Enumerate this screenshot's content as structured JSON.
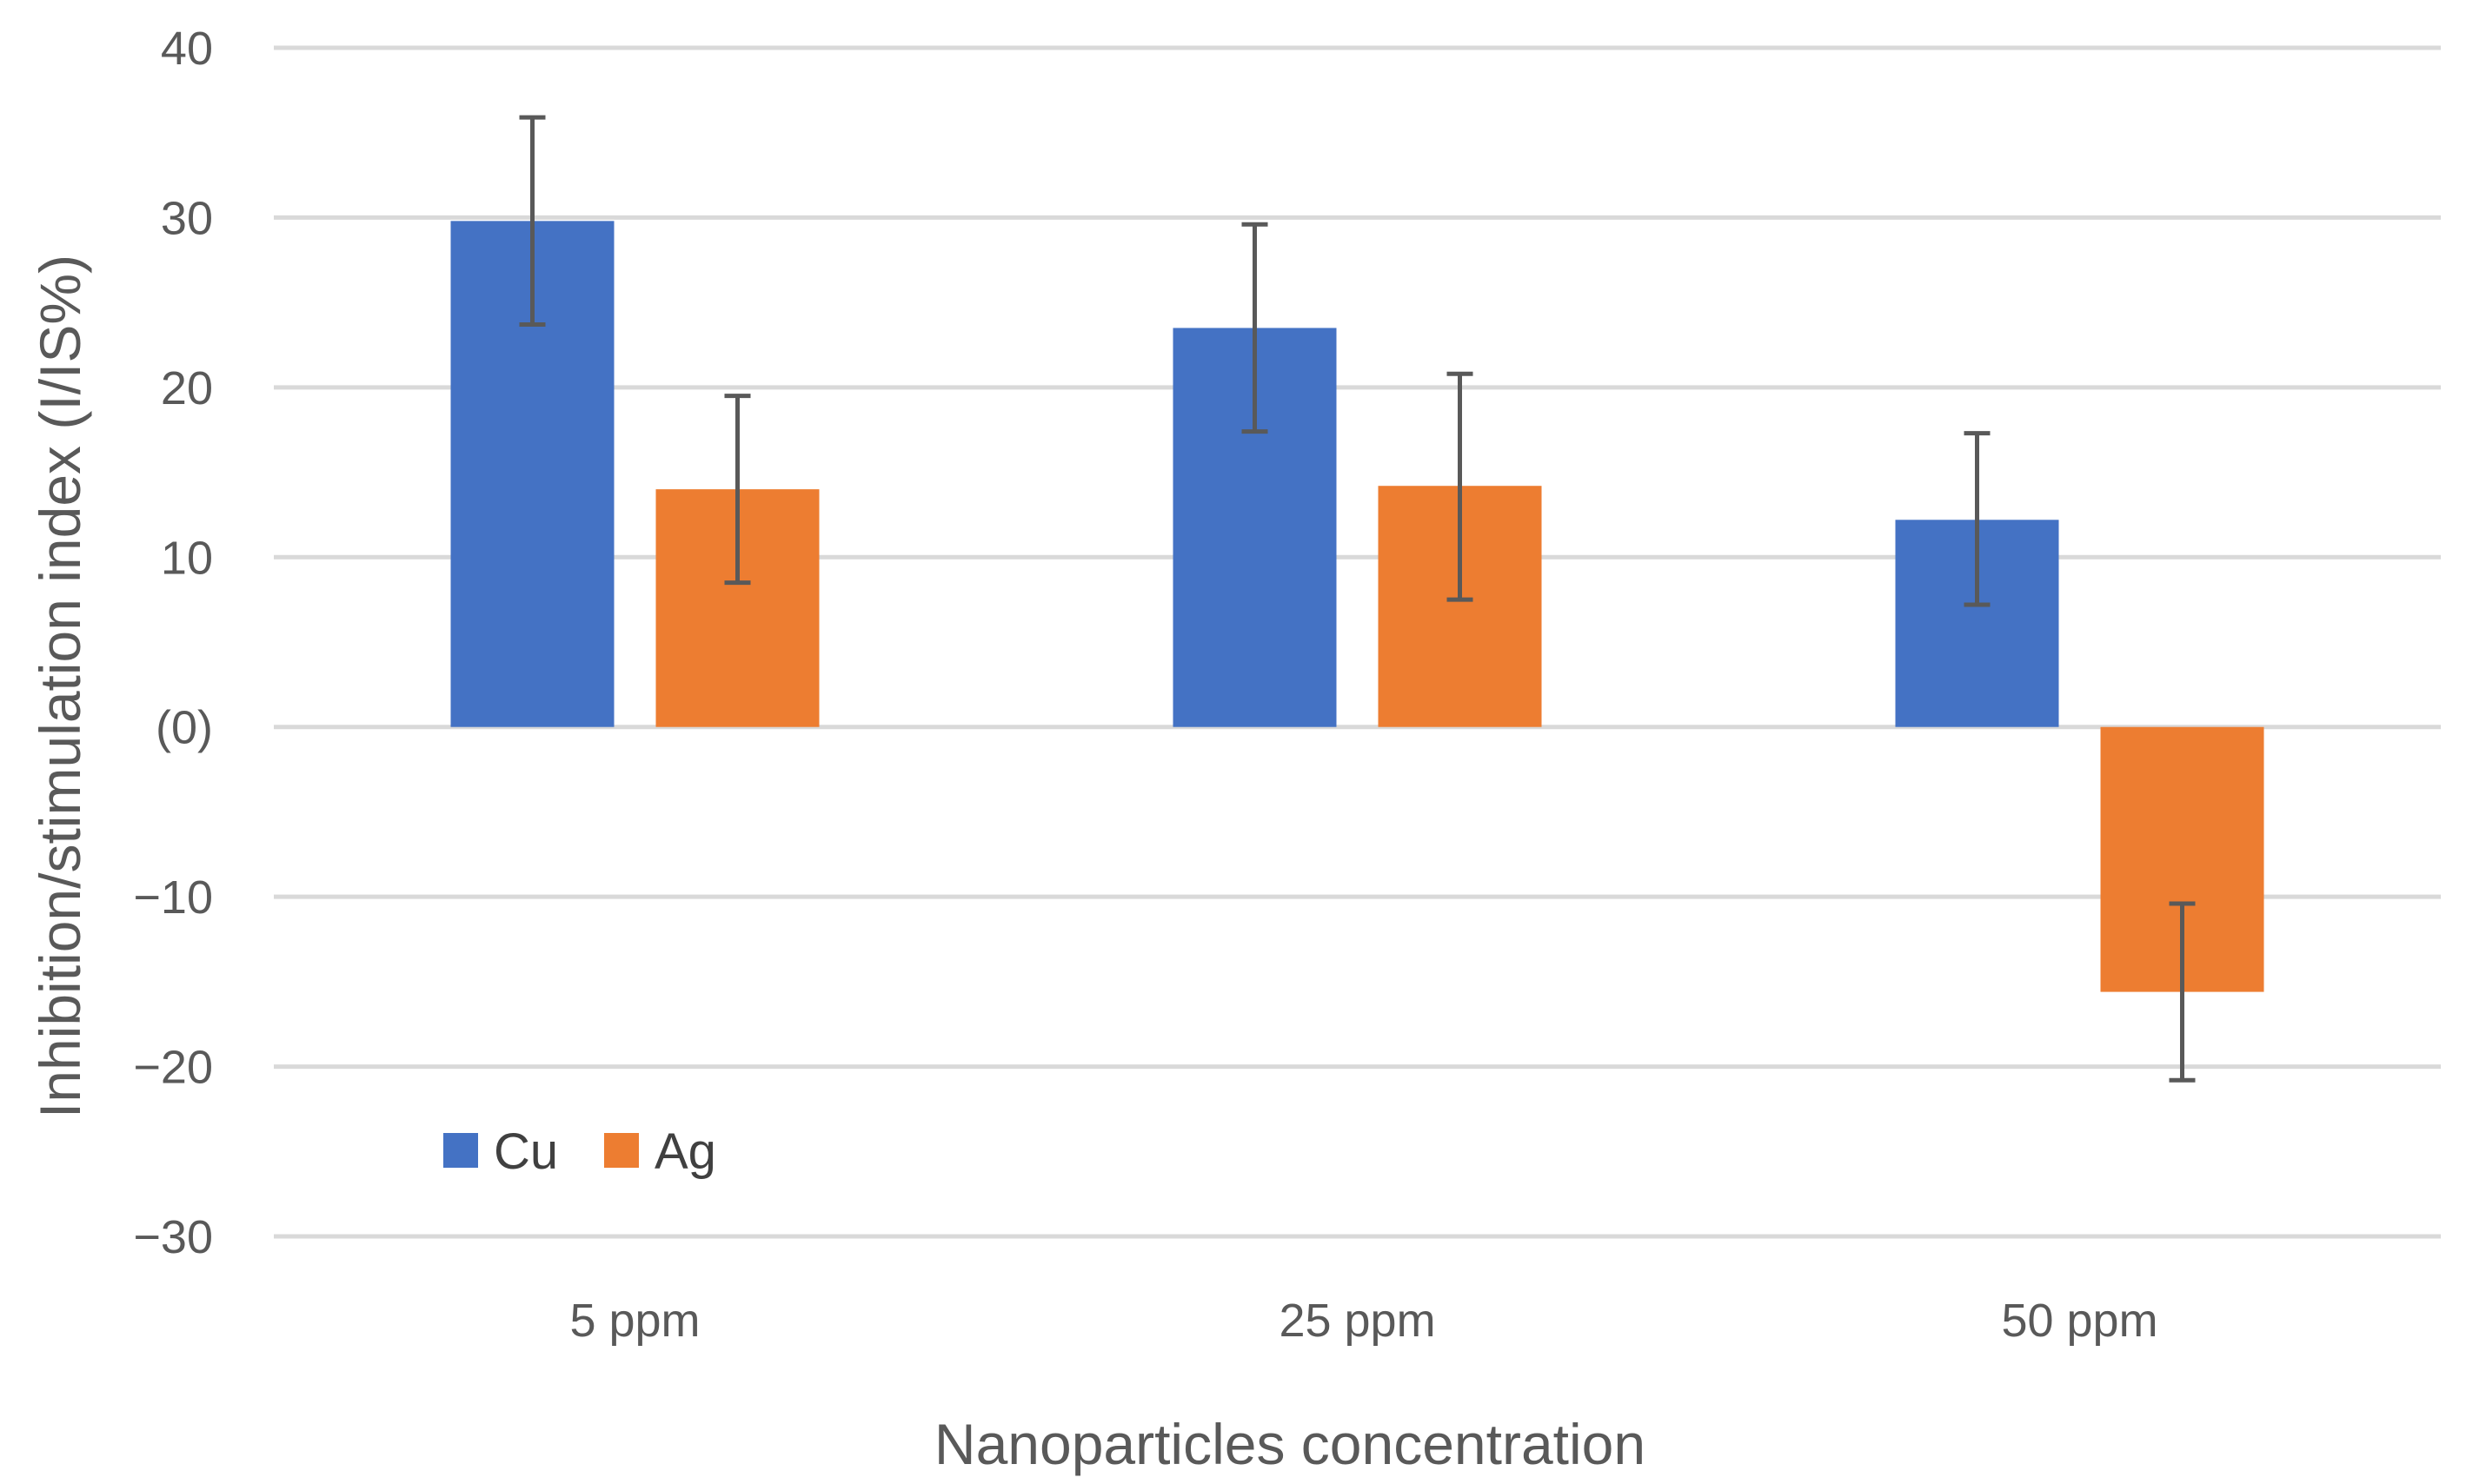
{
  "chart_data": {
    "type": "bar",
    "title": "",
    "xlabel": "Nanoparticles concentration",
    "ylabel": "Inhibition/stimulation index (I/IS%)",
    "categories": [
      "5 ppm",
      "25 ppm",
      "50 ppm"
    ],
    "ylim": [
      -30,
      40
    ],
    "yticks": [
      40,
      30,
      20,
      10,
      0,
      -10,
      -20,
      -30
    ],
    "ytick_labels": [
      "40",
      "30",
      "20",
      "10",
      "(0)",
      "−10",
      "−20",
      "−30"
    ],
    "grid": true,
    "legend_position": "bottom-left",
    "series": [
      {
        "name": "Cu",
        "color": "#4472C4",
        "values": [
          29.8,
          23.5,
          12.2
        ],
        "err_low": [
          23.7,
          17.4,
          7.2
        ],
        "err_high": [
          35.9,
          29.6,
          17.3
        ]
      },
      {
        "name": "Ag",
        "color": "#ED7D31",
        "values": [
          14.0,
          14.2,
          -15.6
        ],
        "err_low": [
          8.5,
          7.5,
          -20.8
        ],
        "err_high": [
          19.5,
          20.8,
          -10.4
        ]
      }
    ]
  }
}
